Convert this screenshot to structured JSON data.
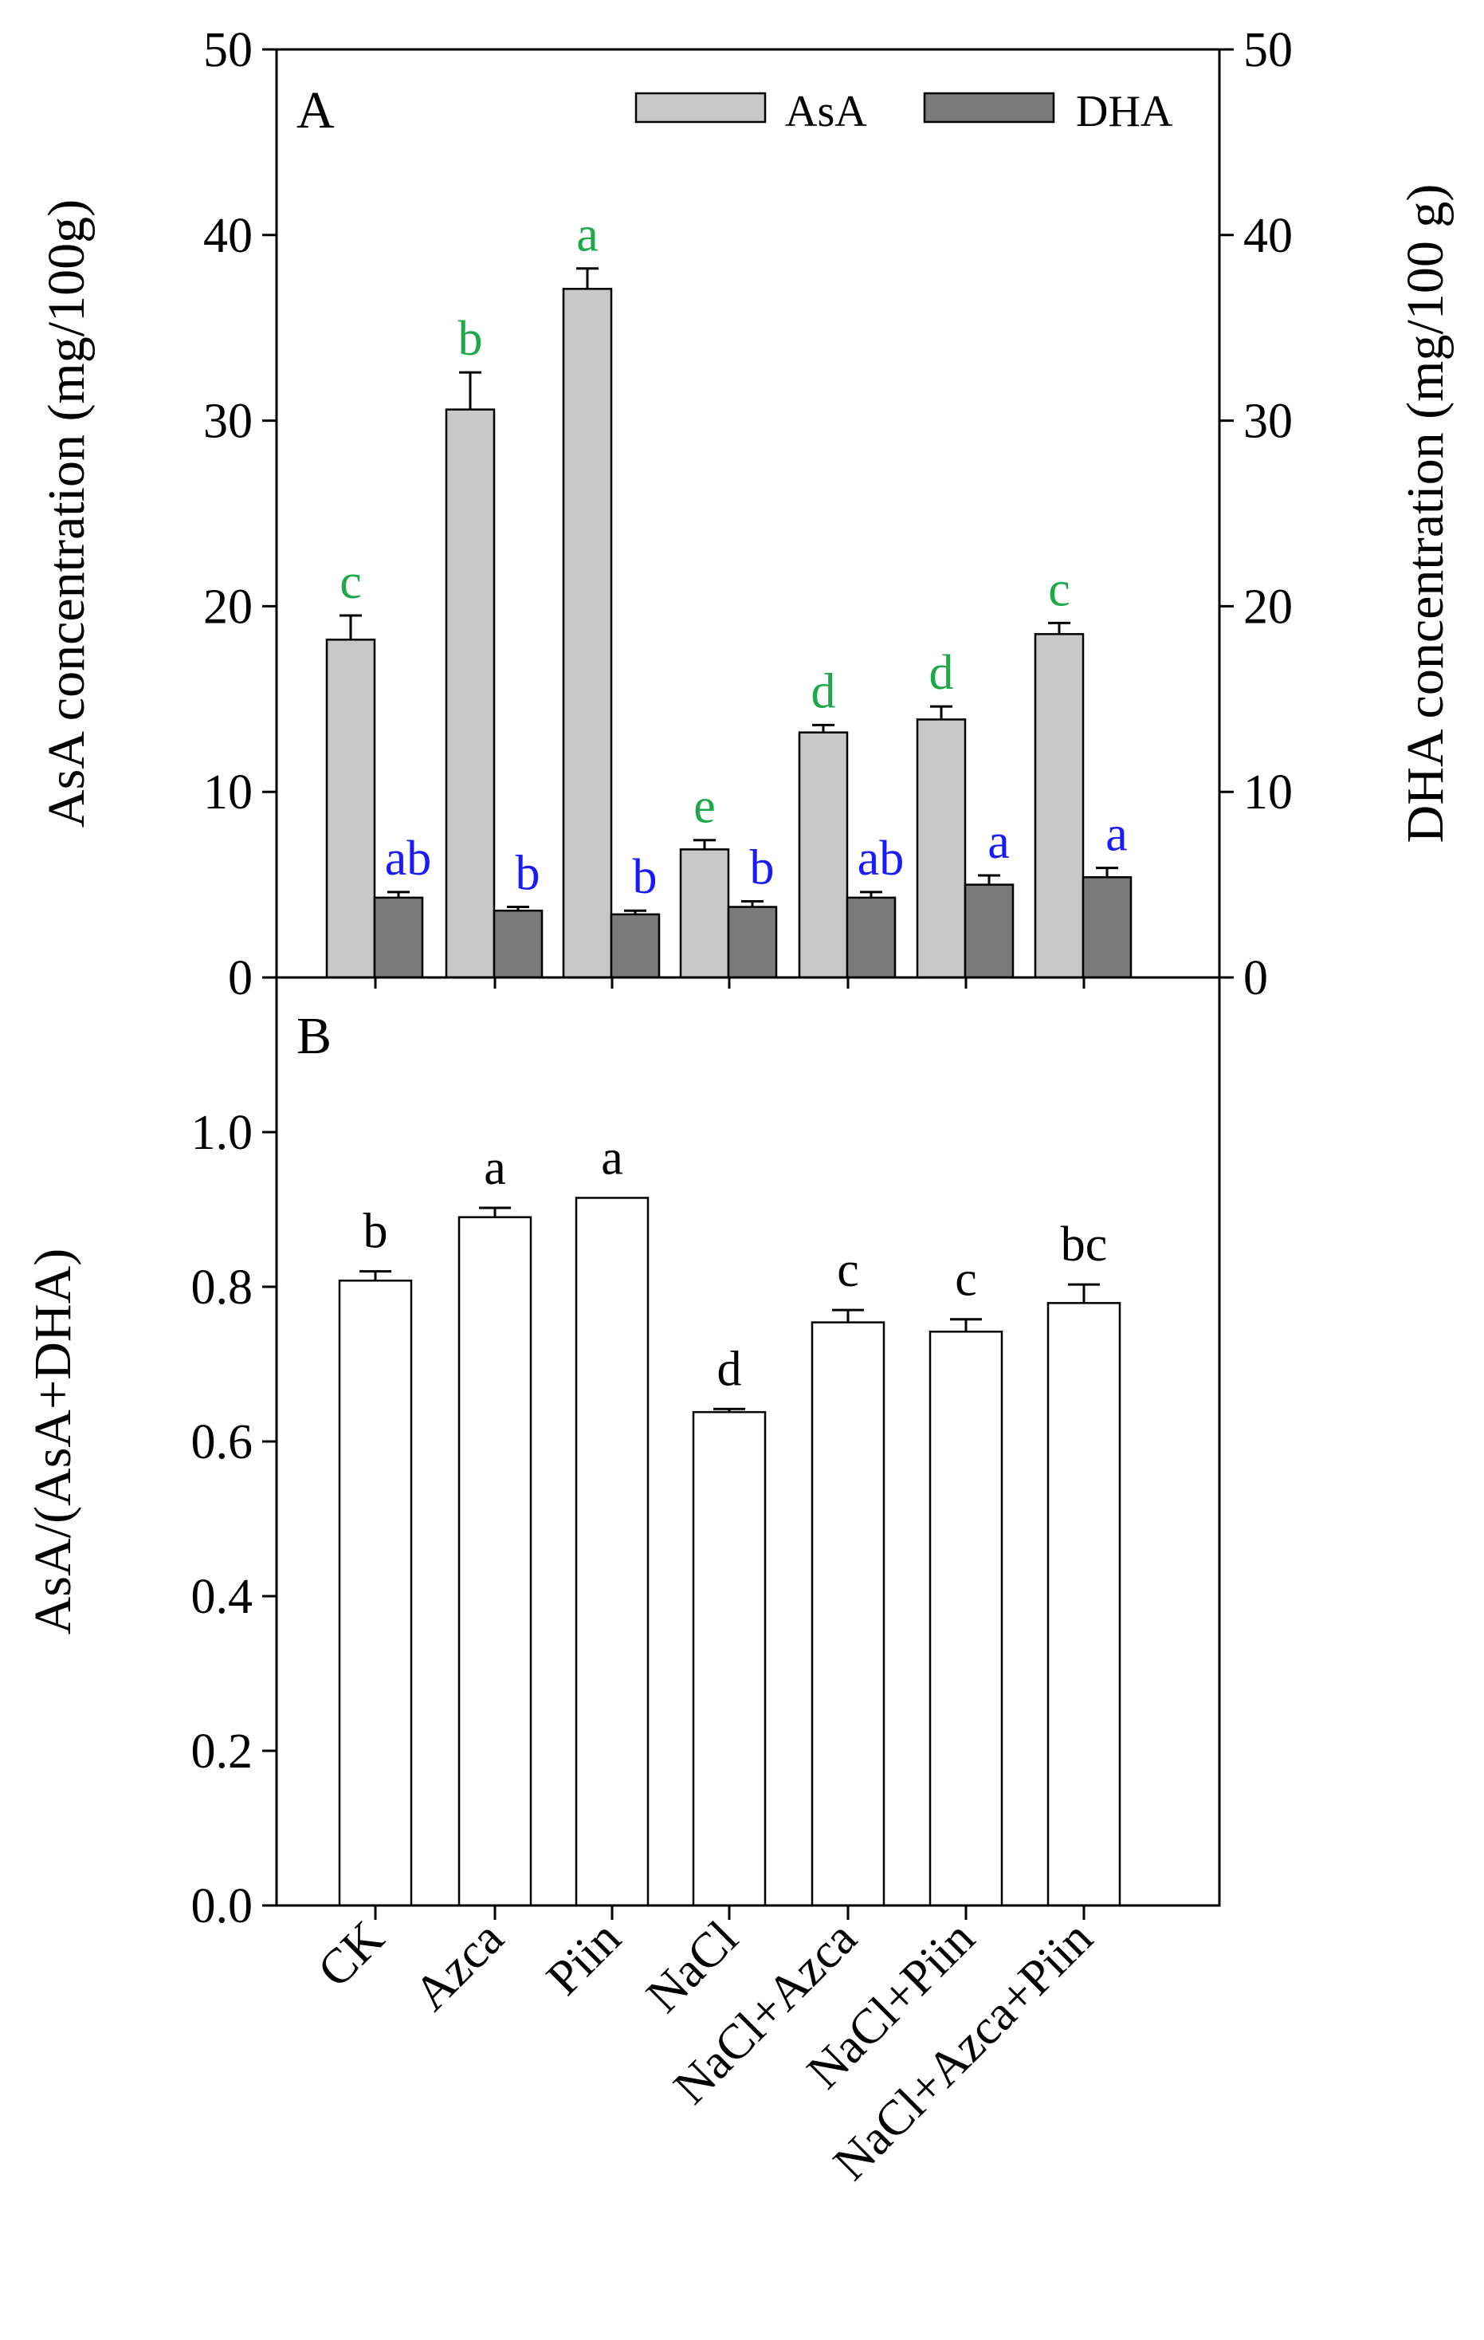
{
  "chart_data": [
    {
      "panel": "A",
      "type": "bar",
      "categories": [
        "CK",
        "Azca",
        "Piin",
        "NaCl",
        "NaCl+Azca",
        "NaCl+Piin",
        "NaCl+Azca+Piin"
      ],
      "ylabel": "AsA concentration (mg/100g)",
      "ylabel_right": "DHA concentration (mg/100 g)",
      "ylim": [
        0,
        50
      ],
      "yticks": [
        "0",
        "10",
        "20",
        "30",
        "40",
        "50"
      ],
      "legend_position": "top-right",
      "series": [
        {
          "name": "AsA",
          "color": "#c8c8c8",
          "values": [
            18.2,
            30.6,
            37.1,
            6.9,
            13.2,
            13.9,
            18.5
          ],
          "errors": [
            1.3,
            2.0,
            1.1,
            0.5,
            0.4,
            0.7,
            0.6
          ],
          "letters": [
            "c",
            "b",
            "a",
            "e",
            "d",
            "d",
            "c"
          ],
          "letter_color": "#1fa84a"
        },
        {
          "name": "DHA",
          "color": "#7a7a7a",
          "values": [
            4.3,
            3.6,
            3.4,
            3.8,
            4.3,
            5.0,
            5.4
          ],
          "errors": [
            0.3,
            0.2,
            0.2,
            0.3,
            0.3,
            0.5,
            0.5
          ],
          "letters": [
            "ab",
            "b",
            "b",
            "b",
            "ab",
            "a",
            "a"
          ],
          "letter_color": "#1a1aff"
        }
      ]
    },
    {
      "panel": "B",
      "type": "bar",
      "categories": [
        "CK",
        "Azca",
        "Piin",
        "NaCl",
        "NaCl+Azca",
        "NaCl+Piin",
        "NaCl+Azca+Piin"
      ],
      "ylabel": "AsA/(AsA+DHA)",
      "ylim": [
        0,
        1.2
      ],
      "yticks": [
        "0.0",
        "0.2",
        "0.4",
        "0.6",
        "0.8",
        "1.0"
      ],
      "series": [
        {
          "name": "AsA/(AsA+DHA)",
          "color": "#ffffff",
          "values": [
            0.808,
            0.89,
            0.915,
            0.638,
            0.754,
            0.742,
            0.779
          ],
          "errors": [
            0.012,
            0.012,
            0.0,
            0.004,
            0.016,
            0.016,
            0.024
          ],
          "letters": [
            "b",
            "a",
            "a",
            "d",
            "c",
            "c",
            "bc"
          ],
          "letter_color": "#000000"
        }
      ]
    }
  ]
}
